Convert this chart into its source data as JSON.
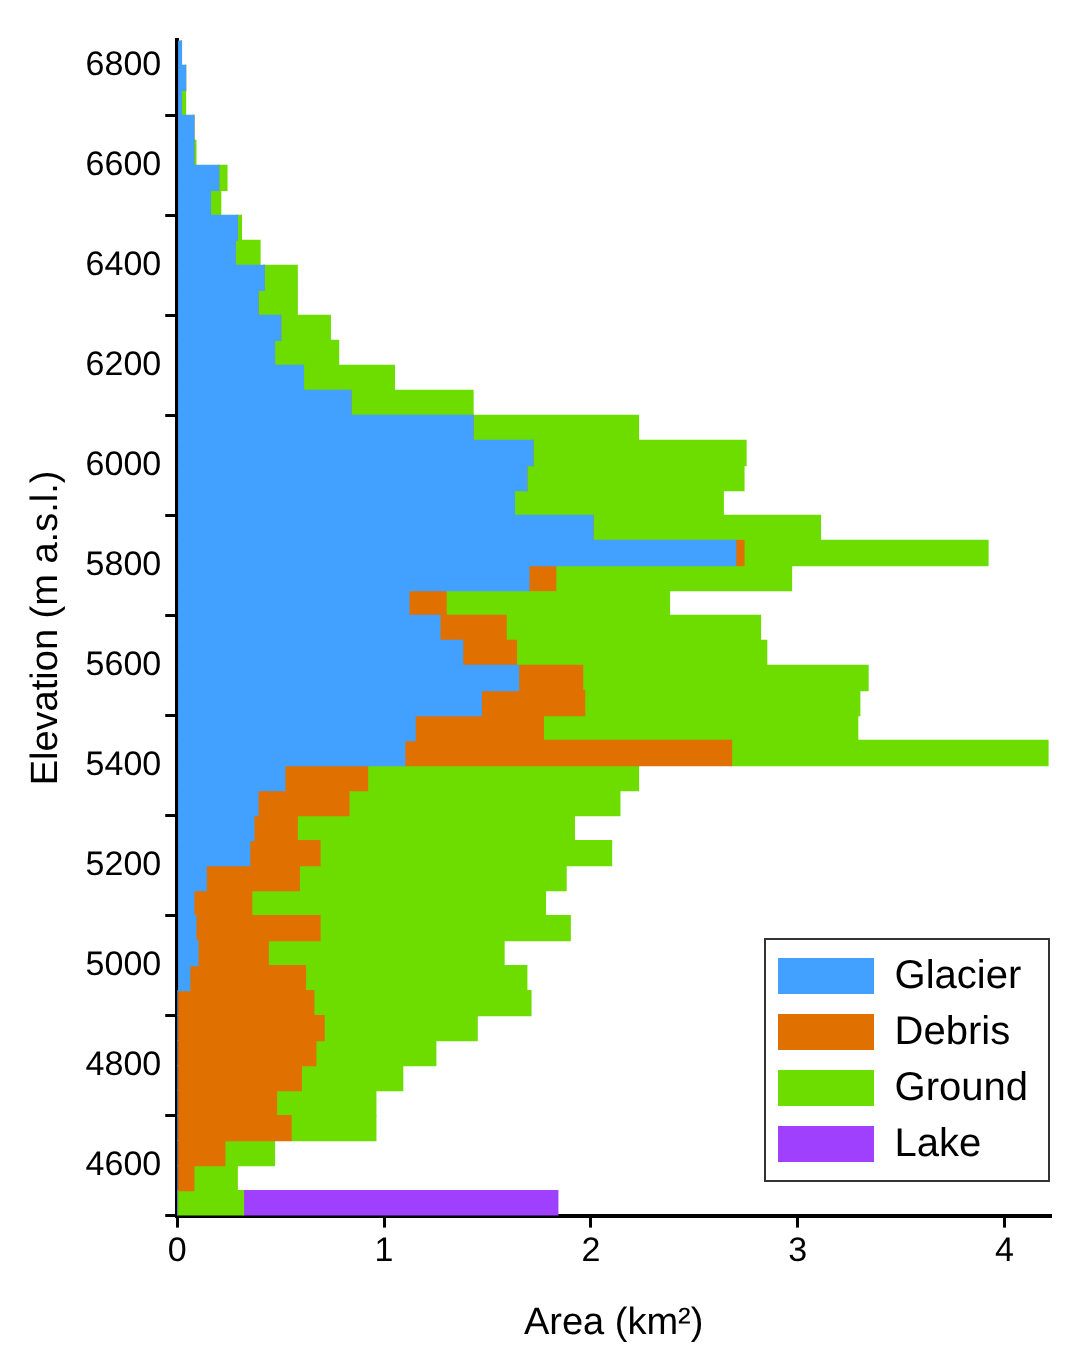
{
  "chart_data": {
    "type": "bar",
    "orientation": "horizontal",
    "stacked": true,
    "xlabel": "Area (km²)",
    "ylabel": "Elevation (m a.s.l.)",
    "x": [
      6825,
      6775,
      6725,
      6675,
      6625,
      6575,
      6525,
      6475,
      6425,
      6375,
      6325,
      6275,
      6225,
      6175,
      6125,
      6075,
      6025,
      5975,
      5925,
      5875,
      5825,
      5775,
      5725,
      5675,
      5625,
      5575,
      5525,
      5475,
      5425,
      5375,
      5325,
      5275,
      5225,
      5175,
      5125,
      5075,
      5025,
      4975,
      4925,
      4875,
      4825,
      4775,
      4725,
      4675,
      4625,
      4575,
      4525
    ],
    "series": [
      {
        "name": "Glacier",
        "color": "#42a0ff",
        "values": [
          0.02,
          0.04,
          0.02,
          0.08,
          0.08,
          0.2,
          0.16,
          0.29,
          0.28,
          0.42,
          0.39,
          0.5,
          0.47,
          0.61,
          0.84,
          1.43,
          1.72,
          1.69,
          1.63,
          2.01,
          2.7,
          1.7,
          1.12,
          1.27,
          1.38,
          1.65,
          1.47,
          1.15,
          1.1,
          0.52,
          0.39,
          0.37,
          0.35,
          0.14,
          0.08,
          0.09,
          0.1,
          0.06,
          0,
          0,
          0,
          0,
          0,
          0,
          0,
          0,
          0
        ]
      },
      {
        "name": "Debris",
        "color": "#e07000",
        "values": [
          0,
          0,
          0,
          0,
          0,
          0,
          0,
          0,
          0,
          0,
          0,
          0,
          0,
          0,
          0,
          0,
          0,
          0,
          0,
          0,
          0.04,
          0.13,
          0.18,
          0.32,
          0.26,
          0.31,
          0.5,
          0.62,
          1.58,
          0.4,
          0.44,
          0.21,
          0.34,
          0.45,
          0.28,
          0.6,
          0.34,
          0.56,
          0.66,
          0.71,
          0.67,
          0.6,
          0.48,
          0.55,
          0.23,
          0.08,
          0
        ]
      },
      {
        "name": "Ground",
        "color": "#6ddd00",
        "values": [
          0,
          0,
          0.02,
          0,
          0.01,
          0.04,
          0.05,
          0.02,
          0.12,
          0.16,
          0.19,
          0.24,
          0.31,
          0.44,
          0.59,
          0.8,
          1.03,
          1.05,
          1.01,
          1.1,
          1.18,
          1.14,
          1.08,
          1.23,
          1.21,
          1.38,
          1.33,
          1.52,
          1.53,
          1.31,
          1.31,
          1.34,
          1.41,
          1.29,
          1.42,
          1.21,
          1.14,
          1.07,
          1.05,
          0.74,
          0.58,
          0.49,
          0.48,
          0.41,
          0.24,
          0.21,
          0.32
        ]
      },
      {
        "name": "Lake",
        "color": "#a040ff",
        "values": [
          null,
          null,
          null,
          null,
          null,
          null,
          null,
          null,
          null,
          null,
          null,
          null,
          null,
          null,
          null,
          null,
          null,
          null,
          null,
          null,
          null,
          null,
          null,
          null,
          null,
          null,
          null,
          null,
          null,
          null,
          null,
          null,
          null,
          null,
          null,
          null,
          null,
          null,
          null,
          null,
          null,
          null,
          null,
          null,
          null,
          null,
          1.52
        ]
      }
    ],
    "xlim": [
      0,
      4.22
    ],
    "xticks": [
      0,
      1,
      2,
      3,
      4
    ],
    "ylim": [
      4500,
      6850
    ],
    "yticks": [
      4600,
      4800,
      5000,
      5200,
      5400,
      5600,
      5800,
      6000,
      6200,
      6400,
      6600,
      6800
    ],
    "grid": false,
    "legend": "bottom right"
  }
}
